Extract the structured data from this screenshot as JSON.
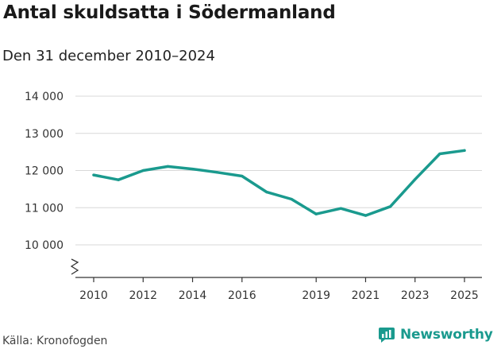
{
  "colors": {
    "line": "#1a9a8e",
    "grid": "#d8d8d8",
    "axis": "#333333"
  },
  "header": {
    "title": "Antal skuldsatta i Södermanland",
    "subtitle": "Den 31 december 2010–2024"
  },
  "footer": {
    "source": "Källa: Kronofogden",
    "brand": "Newsworthy",
    "brand_icon": "newsworthy-logo-icon"
  },
  "chart_data": {
    "type": "line",
    "title": "Antal skuldsatta i Södermanland",
    "subtitle": "Den 31 december 2010–2024",
    "xlabel": "",
    "ylabel": "",
    "xlim": [
      2010,
      2025
    ],
    "ylim": [
      9200,
      14000
    ],
    "axis_break": true,
    "grid": true,
    "x_ticks": [
      2010,
      2012,
      2014,
      2016,
      2019,
      2021,
      2023,
      2025
    ],
    "y_ticks": [
      {
        "value": 10000,
        "label": "10 000"
      },
      {
        "value": 11000,
        "label": "11 000"
      },
      {
        "value": 12000,
        "label": "12 000"
      },
      {
        "value": 13000,
        "label": "13 000"
      },
      {
        "value": 14000,
        "label": "14 000"
      }
    ],
    "series": [
      {
        "name": "Antal skuldsatta",
        "x": [
          2010,
          2011,
          2012,
          2013,
          2014,
          2015,
          2016,
          2017,
          2018,
          2019,
          2020,
          2021,
          2022,
          2023,
          2024,
          2025
        ],
        "values": [
          11880,
          11750,
          12000,
          12110,
          12040,
          11950,
          11850,
          11420,
          11230,
          10830,
          10980,
          10790,
          11030,
          11760,
          12450,
          12540
        ]
      }
    ]
  }
}
